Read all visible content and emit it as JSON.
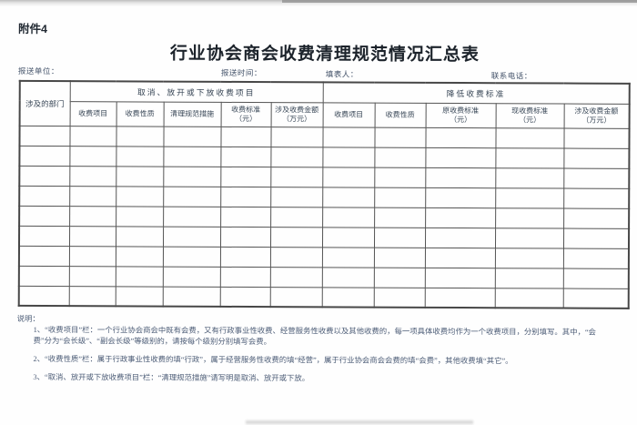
{
  "page": {
    "attachment_label": "附件4",
    "title": "行业协会商会收费清理规范情况汇总表"
  },
  "meta": {
    "report_unit_label": "报送单位：",
    "report_time_label": "报送时间：",
    "form_filler_label": "填表人：",
    "contact_phone_label": "联系电话："
  },
  "table": {
    "corner_header": "涉及的部门",
    "groups": [
      {
        "title": "取消、放开或下放收费项目",
        "columns": [
          "收费项目",
          "收费性质",
          "清理规范措施",
          "收费标准\n（元）",
          "涉及收费金额\n（万元）"
        ]
      },
      {
        "title": "降低收费标准",
        "columns": [
          "收费项目",
          "收费性质",
          "原收费标准\n（元）",
          "现收费标准\n（元）",
          "涉及收费金额\n（万元）"
        ]
      }
    ],
    "body_rows": 9,
    "body_cols": 11
  },
  "notes": {
    "heading": "说明：",
    "items": [
      "1、“收费项目”栏：一个行业协会商会中既有会费，又有行政事业性收费、经营服务性收费以及其他收费的，每一项具体收费均作为一个收费项目，分别填写。其中，“会费”分为“会长级”、“副会长级”等级别的，请按每个级别分别填写会费。",
      "2、“收费性质”栏：属于行政事业性收费的填“行政”，属于经营服务性收费的填“经营”，属于行业协会商会会费的填“会费”，其他收费填“其它”。",
      "3、“取消、放开或下放收费项目”栏：“清理规范措施”请写明是取消、放开或下放。"
    ]
  },
  "colors": {
    "ink": "#384656",
    "border": "#545454"
  }
}
